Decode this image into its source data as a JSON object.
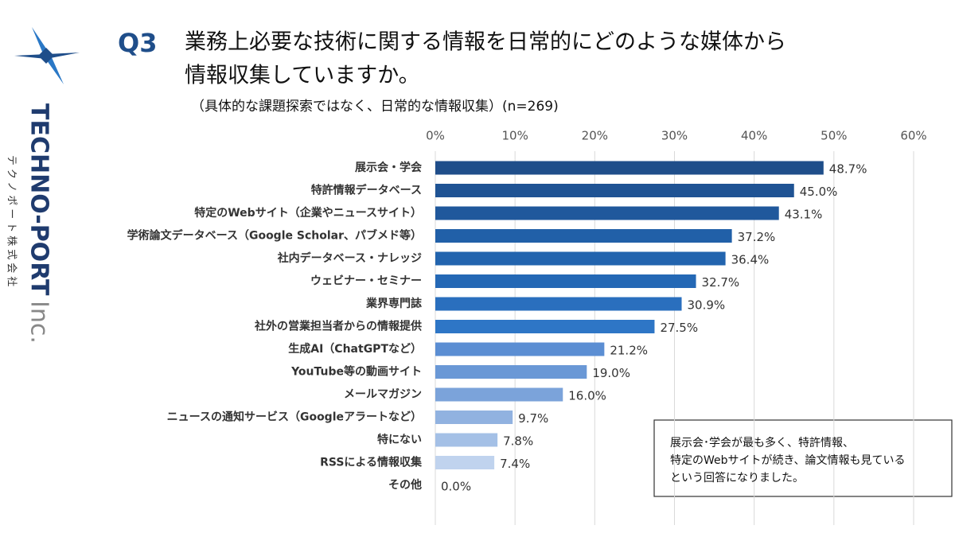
{
  "logo": {
    "text": "TECHNO-PORT",
    "suffix": "Inc.",
    "company": "テクノポート株式会社"
  },
  "chart_data": {
    "type": "bar",
    "question": "Q3",
    "title": [
      "業務上必要な技術に関する情報を日常的にどのような媒体から",
      "情報収集していますか。"
    ],
    "subtitle": "（具体的な課題探索ではなく、日常的な情報収集）(n=269)",
    "categories": [
      "展示会・学会",
      "特許情報データベース",
      "特定のWebサイト（企業やニュースサイト）",
      "学術論文データベース（Google Scholar、パブメド等）",
      "社内データベース・ナレッジ",
      "ウェビナー・セミナー",
      "業界専門誌",
      "社外の営業担当者からの情報提供",
      "生成AI（ChatGPTなど）",
      "YouTube等の動画サイト",
      "メールマガジン",
      "ニュースの通知サービス（Googleアラートなど）",
      "特にない",
      "RSSによる情報収集",
      "その他"
    ],
    "values": [
      48.7,
      45.0,
      43.1,
      37.2,
      36.4,
      32.7,
      30.9,
      27.5,
      21.2,
      19.0,
      16.0,
      9.7,
      7.8,
      7.4,
      0.0
    ],
    "value_labels": [
      "48.7%",
      "45.0%",
      "43.1%",
      "37.2%",
      "36.4%",
      "32.7%",
      "30.9%",
      "27.5%",
      "21.2%",
      "19.0%",
      "16.0%",
      "9.7%",
      "7.8%",
      "7.4%",
      "0.0%"
    ],
    "colors": [
      "#1f4e8a",
      "#1f5394",
      "#20589c",
      "#2160a8",
      "#2264ae",
      "#2468b5",
      "#2a6fbe",
      "#2e76c6",
      "#5b8ed3",
      "#6a98d6",
      "#7ba3da",
      "#91b2e0",
      "#a4c0e6",
      "#c0d3ee",
      "#c8d8f0"
    ],
    "xlim": [
      0,
      60
    ],
    "xticks": [
      {
        "value": 0,
        "label": "0%"
      },
      {
        "value": 10,
        "label": "10%"
      },
      {
        "value": 20,
        "label": "20%"
      },
      {
        "value": 30,
        "label": "30%"
      },
      {
        "value": 40,
        "label": "40%"
      },
      {
        "value": 50,
        "label": "50%"
      },
      {
        "value": 60,
        "label": "60%"
      }
    ],
    "grid": true,
    "annotation": [
      "展示会･学会が最も多く、特許情報、",
      "特定のWebサイトが続き、論文情報も見ている",
      "という回答になりました。"
    ]
  }
}
